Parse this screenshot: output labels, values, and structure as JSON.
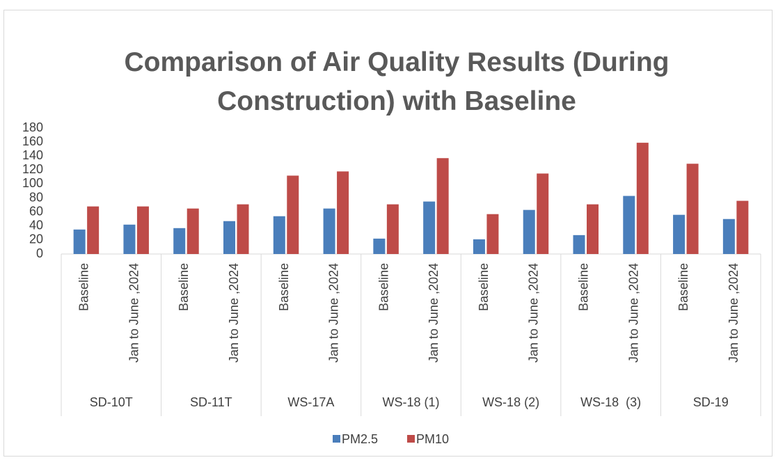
{
  "chart_data": {
    "type": "bar",
    "title": "Comparison of Air Quality Results (During Construction) with Baseline",
    "groups": [
      "SD-10T",
      "SD-11T",
      "WS-17A",
      "WS-18 (1)",
      "WS-18 (2)",
      "WS-18  (3)",
      "SD-19"
    ],
    "categories": [
      "Baseline",
      "Jan to June ,2024",
      "Baseline",
      "Jan to June ,2024",
      "Baseline",
      "Jan to June ,2024",
      "Baseline",
      "Jan to June ,2024",
      "Baseline",
      "Jan to June ,2024",
      "Baseline",
      "Jan to June ,2024",
      "Baseline",
      "Jan to June ,2024"
    ],
    "series": [
      {
        "name": "PM2.5",
        "color": "#4a7ebb",
        "values": [
          35,
          42,
          37,
          47,
          54,
          65,
          22,
          75,
          21,
          63,
          27,
          83,
          56,
          50
        ]
      },
      {
        "name": "PM10",
        "color": "#be4b48",
        "values": [
          68,
          68,
          65,
          71,
          112,
          118,
          71,
          137,
          57,
          115,
          71,
          159,
          129,
          76
        ]
      }
    ],
    "ylim": [
      0,
      180
    ],
    "yticks": [
      0,
      20,
      40,
      60,
      80,
      100,
      120,
      140,
      160,
      180
    ],
    "grid": false,
    "legend": "bottom"
  }
}
